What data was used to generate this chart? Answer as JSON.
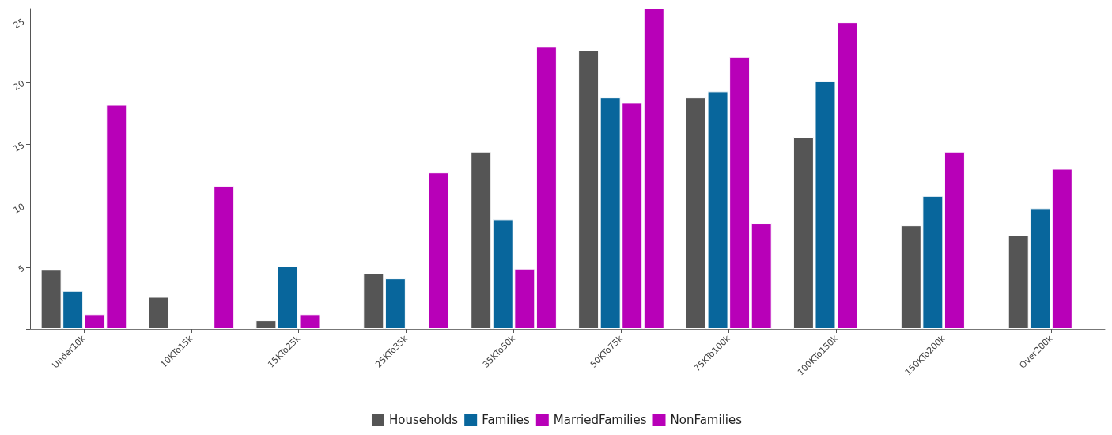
{
  "chart_data": {
    "type": "bar",
    "categories": [
      "Under10k",
      "10KTo15k",
      "15KTo25k",
      "25KTo35k",
      "35KTo50k",
      "50KTo75k",
      "75KTo100k",
      "100KTo150k",
      "150KTo200k",
      "Over200k"
    ],
    "series": [
      {
        "name": "Households",
        "color": "#555555",
        "values": [
          4.8,
          2.6,
          0.7,
          4.5,
          14.4,
          22.6,
          18.8,
          15.6,
          8.4,
          7.6
        ]
      },
      {
        "name": "Families",
        "color": "#08669c",
        "values": [
          3.1,
          null,
          5.1,
          4.1,
          8.9,
          18.8,
          19.3,
          20.1,
          10.8,
          9.8
        ]
      },
      {
        "name": "MarriedFamilies",
        "color": "#b800b8",
        "values": [
          1.2,
          null,
          1.2,
          null,
          4.9,
          18.4,
          22.1,
          24.9,
          14.4,
          13.0
        ]
      },
      {
        "name": "NonFamilies",
        "color": "#b800b8",
        "values": [
          18.2,
          11.6,
          null,
          12.7,
          22.9,
          26.0,
          8.6,
          null,
          null,
          null
        ]
      }
    ],
    "ylim": [
      0,
      26
    ],
    "yticks": [
      {
        "value": 0,
        "label": null
      },
      5,
      10,
      15,
      20,
      25
    ],
    "grid": false,
    "legend": "bottom"
  }
}
